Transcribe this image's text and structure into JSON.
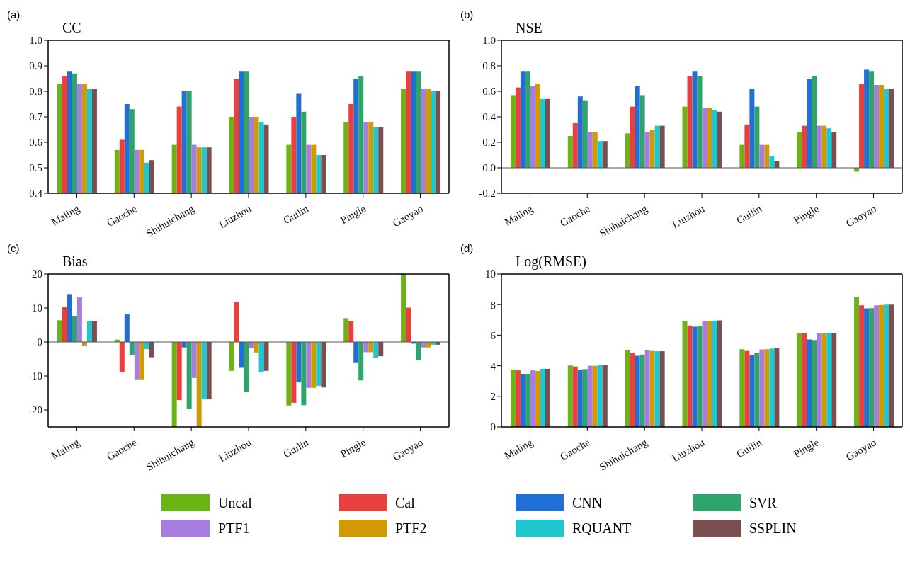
{
  "chart_data": [
    {
      "type": "bar",
      "title": "CC",
      "annotations": [
        "(a)"
      ],
      "categories": [
        "Maling",
        "Gaoche",
        "Shihuichang",
        "Liuzhou",
        "Guilin",
        "Pingle",
        "Gaoyao"
      ],
      "ylim": [
        0.4,
        1.0
      ],
      "yticks": [
        {
          "value": 0.4,
          "label": "0.4"
        },
        {
          "value": 0.5,
          "label": "0.5"
        },
        {
          "value": 0.6,
          "label": "0.6"
        },
        {
          "value": 0.7,
          "label": "0.7"
        },
        {
          "value": 0.8,
          "label": "0.8"
        },
        {
          "value": 0.9,
          "label": "0.9"
        },
        {
          "value": 1.0,
          "label": "1.0"
        }
      ],
      "grid": false,
      "legend": false,
      "series": [
        {
          "color": "#6ab514",
          "values": [
            0.83,
            0.57,
            0.59,
            0.7,
            0.59,
            0.68,
            0.81
          ]
        },
        {
          "color": "#e8403c",
          "values": [
            0.86,
            0.61,
            0.74,
            0.85,
            0.7,
            0.75,
            0.88
          ]
        },
        {
          "color": "#1f6fd6",
          "values": [
            0.88,
            0.75,
            0.8,
            0.88,
            0.79,
            0.85,
            0.88
          ]
        },
        {
          "color": "#2fa36a",
          "values": [
            0.87,
            0.73,
            0.8,
            0.88,
            0.72,
            0.86,
            0.88
          ]
        },
        {
          "color": "#a87de0",
          "values": [
            0.83,
            0.57,
            0.59,
            0.7,
            0.59,
            0.68,
            0.81
          ]
        },
        {
          "color": "#d19a00",
          "values": [
            0.83,
            0.57,
            0.58,
            0.7,
            0.59,
            0.68,
            0.81
          ]
        },
        {
          "color": "#1fc8d0",
          "values": [
            0.81,
            0.52,
            0.58,
            0.68,
            0.55,
            0.66,
            0.8
          ]
        },
        {
          "color": "#7a4f4f",
          "values": [
            0.81,
            0.53,
            0.58,
            0.67,
            0.55,
            0.66,
            0.8
          ]
        }
      ]
    },
    {
      "type": "bar",
      "title": "NSE",
      "annotations": [
        "(b)"
      ],
      "categories": [
        "Maling",
        "Gaoche",
        "Shihuichang",
        "Liuzhou",
        "Guilin",
        "Pingle",
        "Gaoyao"
      ],
      "ylim": [
        -0.2,
        1.0
      ],
      "yticks": [
        {
          "value": -0.2,
          "label": "-0.2"
        },
        {
          "value": 0,
          "label": "0.0"
        },
        {
          "value": 0.2,
          "label": "0.2"
        },
        {
          "value": 0.4,
          "label": "0.4"
        },
        {
          "value": 0.6,
          "label": "0.6"
        },
        {
          "value": 0.8,
          "label": "0.8"
        },
        {
          "value": 1.0,
          "label": "1.0"
        }
      ],
      "ref_lines": [
        {
          "axis": "y",
          "value": 0,
          "color": "#555555"
        }
      ],
      "grid": false,
      "legend": false,
      "series": [
        {
          "color": "#6ab514",
          "values": [
            0.57,
            0.25,
            0.27,
            0.48,
            0.18,
            0.28,
            -0.03
          ]
        },
        {
          "color": "#e8403c",
          "values": [
            0.63,
            0.35,
            0.48,
            0.72,
            0.34,
            0.33,
            0.66
          ]
        },
        {
          "color": "#1f6fd6",
          "values": [
            0.76,
            0.56,
            0.64,
            0.76,
            0.62,
            0.7,
            0.77
          ]
        },
        {
          "color": "#2fa36a",
          "values": [
            0.76,
            0.53,
            0.57,
            0.72,
            0.48,
            0.72,
            0.76
          ]
        },
        {
          "color": "#a87de0",
          "values": [
            0.64,
            0.28,
            0.28,
            0.47,
            0.18,
            0.33,
            0.65
          ]
        },
        {
          "color": "#d19a00",
          "values": [
            0.66,
            0.28,
            0.3,
            0.47,
            0.18,
            0.33,
            0.65
          ]
        },
        {
          "color": "#1fc8d0",
          "values": [
            0.54,
            0.21,
            0.33,
            0.45,
            0.09,
            0.31,
            0.62
          ]
        },
        {
          "color": "#7a4f4f",
          "values": [
            0.54,
            0.21,
            0.33,
            0.44,
            0.05,
            0.28,
            0.62
          ]
        }
      ]
    },
    {
      "type": "bar",
      "title": "Bias",
      "annotations": [
        "(c)"
      ],
      "categories": [
        "Maling",
        "Gaoche",
        "Shihuichang",
        "Liuzhou",
        "Guilin",
        "Pingle",
        "Gaoyao"
      ],
      "ylim": [
        -25,
        20
      ],
      "yticks": [
        -20,
        -10,
        0,
        10,
        20
      ],
      "ref_lines": [
        {
          "axis": "y",
          "value": 0,
          "color": "#555555"
        }
      ],
      "grid": false,
      "legend": false,
      "series": [
        {
          "color": "#6ab514",
          "values": [
            6.4,
            0.7,
            -25,
            -8.5,
            -18.7,
            7.0,
            20
          ]
        },
        {
          "color": "#e8403c",
          "values": [
            10.2,
            -8.9,
            -17.1,
            11.7,
            -17.9,
            6.1,
            10.1
          ]
        },
        {
          "color": "#1f6fd6",
          "values": [
            14.1,
            8.1,
            -1.6,
            -7.6,
            -11.9,
            -6.0,
            -0.5
          ]
        },
        {
          "color": "#2fa36a",
          "values": [
            7.6,
            -3.9,
            -19.7,
            -14.7,
            -18.6,
            -11.3,
            -5.4
          ]
        },
        {
          "color": "#a87de0",
          "values": [
            13.1,
            -11,
            -10.6,
            -1.9,
            -13.5,
            -3.0,
            -1.6
          ]
        },
        {
          "color": "#d19a00",
          "values": [
            -1.1,
            -11,
            -25,
            -3.1,
            -13.5,
            -3.0,
            -1.6
          ]
        },
        {
          "color": "#1fc8d0",
          "values": [
            6.1,
            -2.1,
            -16.9,
            -8.9,
            -12.9,
            -4.7,
            -0.8
          ]
        },
        {
          "color": "#7a4f4f",
          "values": [
            6.1,
            -4.5,
            -16.9,
            -8.5,
            -13.4,
            -4.2,
            -0.8
          ]
        }
      ]
    },
    {
      "type": "bar",
      "title": "Log(RMSE)",
      "annotations": [
        "(d)"
      ],
      "categories": [
        "Maling",
        "Gaoche",
        "Shihuichang",
        "Liuzhou",
        "Guilin",
        "Pingle",
        "Gaoyao"
      ],
      "ylim": [
        0,
        10
      ],
      "yticks": [
        0,
        2,
        4,
        6,
        8,
        10
      ],
      "grid": false,
      "legend": "bottom",
      "series": [
        {
          "name": "Uncal",
          "color": "#6ab514",
          "values": [
            3.76,
            4.02,
            5.0,
            6.93,
            5.08,
            6.15,
            8.5
          ]
        },
        {
          "name": "Cal",
          "color": "#e8403c",
          "values": [
            3.7,
            3.95,
            4.82,
            6.63,
            4.97,
            6.12,
            7.95
          ]
        },
        {
          "name": "CNN",
          "color": "#1f6fd6",
          "values": [
            3.47,
            3.75,
            4.65,
            6.55,
            4.7,
            5.72,
            7.75
          ]
        },
        {
          "name": "SVR",
          "color": "#2fa36a",
          "values": [
            3.47,
            3.78,
            4.73,
            6.62,
            4.85,
            5.68,
            7.77
          ]
        },
        {
          "name": "PTF1",
          "color": "#a87de0",
          "values": [
            3.7,
            4.0,
            5.0,
            6.93,
            5.07,
            6.12,
            7.95
          ]
        },
        {
          "name": "PTF2",
          "color": "#d19a00",
          "values": [
            3.66,
            4.0,
            4.97,
            6.93,
            5.08,
            6.12,
            7.97
          ]
        },
        {
          "name": "RQUANT",
          "color": "#1fc8d0",
          "values": [
            3.8,
            4.05,
            4.95,
            6.95,
            5.12,
            6.13,
            8.0
          ]
        },
        {
          "name": "SSPLIN",
          "color": "#7a4f4f",
          "values": [
            3.8,
            4.05,
            4.95,
            6.97,
            5.15,
            6.15,
            8.0
          ]
        }
      ]
    }
  ]
}
